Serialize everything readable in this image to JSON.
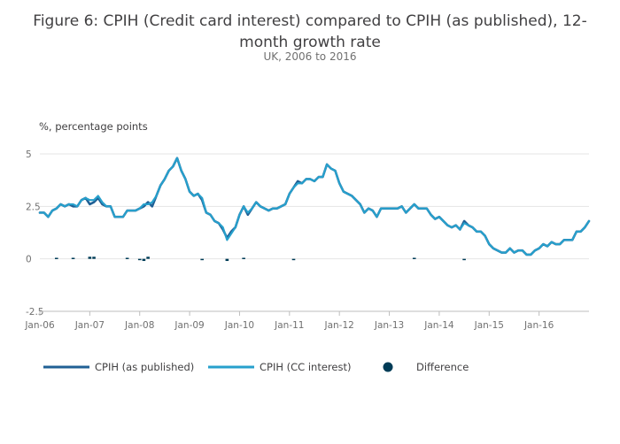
{
  "title_line1": "Figure 6: CPIH (Credit card interest) compared to CPIH (as published), 12-",
  "title_line2": "month growth rate",
  "subtitle": "UK, 2006 to 2016",
  "colors": {
    "published": "#206095",
    "cc_interest": "#27a0cc",
    "difference": "#003c57",
    "grid": "#e5e5e5",
    "axis": "#bebebe"
  },
  "chart_data": {
    "type": "line",
    "title": "Figure 6: CPIH (Credit card interest) compared to CPIH (as published), 12-month growth rate",
    "subtitle": "UK, 2006 to 2016",
    "ylabel": "%, percentage points",
    "ylim": [
      -2.5,
      5
    ],
    "yticks": [
      5,
      2.5,
      0,
      -2.5
    ],
    "ytick_labels": [
      "5",
      "2.5",
      "0",
      "-2.5"
    ],
    "xtick_labels": [
      "Jan-06",
      "Jan-07",
      "Jan-08",
      "Jan-09",
      "Jan-10",
      "Jan-11",
      "Jan-12",
      "Jan-13",
      "Jan-14",
      "Jan-15",
      "Jan-16"
    ],
    "x_start": "Jan-06",
    "months_count": 132,
    "series": [
      {
        "name": "CPIH (as published)",
        "style": "line",
        "values": [
          2.2,
          2.2,
          2.0,
          2.3,
          2.4,
          2.6,
          2.5,
          2.6,
          2.5,
          2.5,
          2.8,
          2.9,
          2.6,
          2.7,
          2.9,
          2.6,
          2.5,
          2.5,
          2.0,
          2.0,
          2.0,
          2.3,
          2.3,
          2.3,
          2.4,
          2.5,
          2.7,
          2.5,
          3.0,
          3.5,
          3.8,
          4.2,
          4.4,
          4.8,
          4.2,
          3.8,
          3.2,
          3.0,
          3.1,
          2.8,
          2.2,
          2.1,
          1.8,
          1.7,
          1.4,
          1.0,
          1.3,
          1.5,
          2.1,
          2.5,
          2.1,
          2.4,
          2.7,
          2.5,
          2.4,
          2.3,
          2.4,
          2.4,
          2.5,
          2.6,
          3.1,
          3.4,
          3.7,
          3.6,
          3.8,
          3.8,
          3.7,
          3.9,
          3.9,
          4.5,
          4.3,
          4.2,
          3.6,
          3.2,
          3.1,
          3.0,
          2.8,
          2.6,
          2.2,
          2.4,
          2.3,
          2.0,
          2.4,
          2.4,
          2.4,
          2.4,
          2.4,
          2.5,
          2.2,
          2.4,
          2.6,
          2.4,
          2.4,
          2.4,
          2.1,
          1.9,
          2.0,
          1.8,
          1.6,
          1.5,
          1.6,
          1.4,
          1.8,
          1.6,
          1.5,
          1.3,
          1.3,
          1.1,
          0.7,
          0.5,
          0.4,
          0.3,
          0.3,
          0.5,
          0.3,
          0.4,
          0.4,
          0.2,
          0.2,
          0.4,
          0.5,
          0.7,
          0.6,
          0.8,
          0.7,
          0.7,
          0.9,
          0.9,
          0.9,
          1.3,
          1.3,
          1.5,
          1.8
        ]
      },
      {
        "name": "CPIH (CC interest)",
        "style": "line",
        "values": [
          2.2,
          2.2,
          2.0,
          2.3,
          2.4,
          2.6,
          2.5,
          2.6,
          2.6,
          2.5,
          2.8,
          2.9,
          2.8,
          2.8,
          3.0,
          2.7,
          2.5,
          2.5,
          2.0,
          2.0,
          2.0,
          2.3,
          2.3,
          2.3,
          2.4,
          2.6,
          2.6,
          2.7,
          3.0,
          3.5,
          3.8,
          4.2,
          4.4,
          4.8,
          4.2,
          3.8,
          3.2,
          3.0,
          3.1,
          2.9,
          2.2,
          2.1,
          1.8,
          1.7,
          1.5,
          0.9,
          1.2,
          1.5,
          2.1,
          2.5,
          2.2,
          2.4,
          2.7,
          2.5,
          2.4,
          2.3,
          2.4,
          2.4,
          2.5,
          2.6,
          3.1,
          3.4,
          3.6,
          3.6,
          3.8,
          3.8,
          3.7,
          3.9,
          3.9,
          4.5,
          4.3,
          4.2,
          3.6,
          3.2,
          3.1,
          3.0,
          2.8,
          2.6,
          2.2,
          2.4,
          2.3,
          2.0,
          2.4,
          2.4,
          2.4,
          2.4,
          2.4,
          2.5,
          2.2,
          2.4,
          2.6,
          2.4,
          2.4,
          2.4,
          2.1,
          1.9,
          2.0,
          1.8,
          1.6,
          1.5,
          1.6,
          1.4,
          1.7,
          1.6,
          1.5,
          1.3,
          1.3,
          1.1,
          0.7,
          0.5,
          0.4,
          0.3,
          0.3,
          0.5,
          0.3,
          0.4,
          0.4,
          0.2,
          0.2,
          0.4,
          0.5,
          0.7,
          0.6,
          0.8,
          0.7,
          0.7,
          0.9,
          0.9,
          0.9,
          1.3,
          1.3,
          1.5,
          1.8
        ]
      },
      {
        "name": "Difference",
        "style": "bar",
        "points": [
          {
            "month": 4,
            "value": 0.05
          },
          {
            "month": 8,
            "value": 0.05
          },
          {
            "month": 12,
            "value": 0.1
          },
          {
            "month": 13,
            "value": 0.1
          },
          {
            "month": 21,
            "value": 0.05
          },
          {
            "month": 24,
            "value": -0.05
          },
          {
            "month": 25,
            "value": -0.1
          },
          {
            "month": 26,
            "value": 0.1
          },
          {
            "month": 39,
            "value": -0.05
          },
          {
            "month": 45,
            "value": -0.1
          },
          {
            "month": 49,
            "value": 0.05
          },
          {
            "month": 61,
            "value": -0.05
          },
          {
            "month": 90,
            "value": 0.05
          },
          {
            "month": 102,
            "value": -0.05
          }
        ]
      }
    ],
    "legend": [
      "CPIH (as published)",
      "CPIH (CC interest)",
      "Difference"
    ],
    "legend_position": "bottom"
  }
}
